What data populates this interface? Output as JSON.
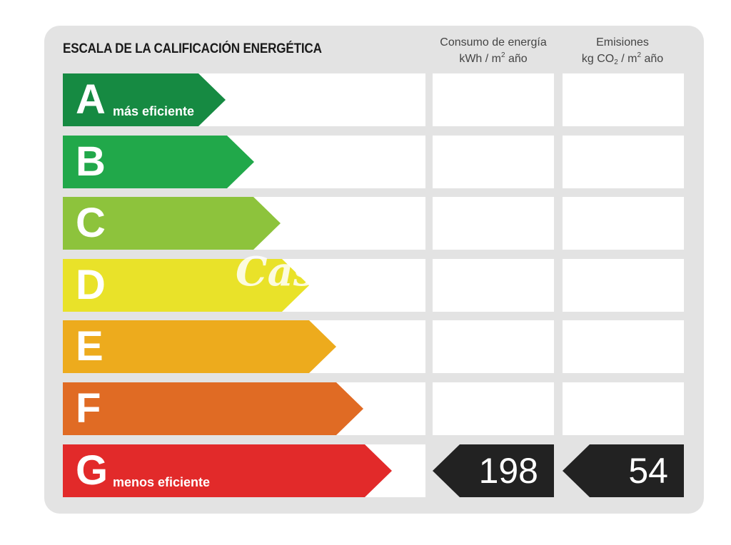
{
  "title": "ESCALA DE LA CALIFICACIÓN ENERGÉTICA",
  "energy_header": {
    "line1": "Consumo de energía",
    "line2_pre": "kWh / m",
    "line2_sup": "2",
    "line2_post": " año"
  },
  "emissions_header": {
    "line1": "Emisiones",
    "line2_pre": "kg CO",
    "line2_sub": "2",
    "line2_mid": " / m",
    "line2_sup": "2",
    "line2_post": " año"
  },
  "classes": [
    {
      "letter": "A",
      "sublabel": "más eficiente",
      "color": "#168a42"
    },
    {
      "letter": "B",
      "sublabel": "",
      "color": "#21a84a"
    },
    {
      "letter": "C",
      "sublabel": "",
      "color": "#8dc33c"
    },
    {
      "letter": "D",
      "sublabel": "",
      "color": "#e9e229"
    },
    {
      "letter": "E",
      "sublabel": "",
      "color": "#edab1d"
    },
    {
      "letter": "F",
      "sublabel": "",
      "color": "#e06b24"
    },
    {
      "letter": "G",
      "sublabel": "menos eficiente",
      "color": "#e22a2a"
    }
  ],
  "rating": {
    "class": "G",
    "energy_value": "198",
    "emissions_value": "54"
  },
  "watermark": "Cas"
}
